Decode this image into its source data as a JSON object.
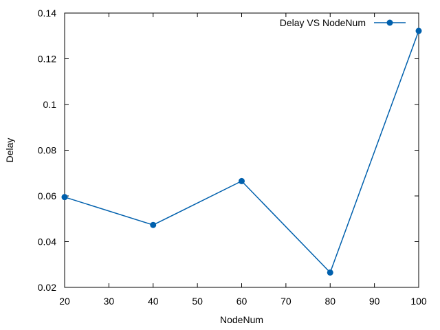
{
  "chart_data": {
    "type": "line",
    "title": "",
    "xlabel": "NodeNum",
    "ylabel": "Delay",
    "xlim": [
      20,
      100
    ],
    "ylim": [
      0.02,
      0.14
    ],
    "x_ticks": [
      20,
      30,
      40,
      50,
      60,
      70,
      80,
      90,
      100
    ],
    "y_ticks": [
      0.02,
      0.04,
      0.06,
      0.08,
      0.1,
      0.12,
      0.14
    ],
    "grid": false,
    "legend_position": "top-right",
    "series": [
      {
        "name": "Delay VS NodeNum",
        "color": "#0060ad",
        "marker": "circle",
        "x": [
          20,
          40,
          60,
          80,
          100
        ],
        "y": [
          0.0595,
          0.0473,
          0.0665,
          0.0265,
          0.1322
        ]
      }
    ]
  }
}
